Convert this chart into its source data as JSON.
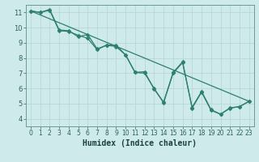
{
  "xlabel": "Humidex (Indice chaleur)",
  "background_color": "#ceeaea",
  "grid_color": "#b8d8d8",
  "line_color": "#2d7f6e",
  "spine_color": "#6a9a9a",
  "tick_color": "#2d6060",
  "label_color": "#1a4040",
  "xlim": [
    -0.5,
    23.5
  ],
  "ylim": [
    3.5,
    11.5
  ],
  "xticks": [
    0,
    1,
    2,
    3,
    4,
    5,
    6,
    7,
    8,
    9,
    10,
    11,
    12,
    13,
    14,
    15,
    16,
    17,
    18,
    19,
    20,
    21,
    22,
    23
  ],
  "yticks": [
    4,
    5,
    6,
    7,
    8,
    9,
    10,
    11
  ],
  "series1_x": [
    0,
    1,
    2,
    3,
    4,
    5,
    6,
    7,
    8,
    9,
    10,
    11,
    12,
    13,
    14,
    15,
    16,
    17,
    18,
    19,
    20,
    21,
    22,
    23
  ],
  "series1_y": [
    11.1,
    11.0,
    11.2,
    9.85,
    9.8,
    9.4,
    9.55,
    8.6,
    8.85,
    8.85,
    8.2,
    7.05,
    7.0,
    6.0,
    5.05,
    7.0,
    7.7,
    4.75,
    5.8,
    4.6,
    4.3,
    4.7,
    4.8,
    5.15
  ],
  "series2_x": [
    0,
    1,
    2,
    3,
    4,
    5,
    6,
    7,
    8,
    9,
    10,
    11,
    12,
    13,
    14,
    15,
    16,
    17,
    18,
    19,
    20,
    21,
    22,
    23
  ],
  "series2_y": [
    11.1,
    11.0,
    11.15,
    9.8,
    9.75,
    9.5,
    9.3,
    8.55,
    8.85,
    8.75,
    8.2,
    7.05,
    7.1,
    5.95,
    5.1,
    7.05,
    7.75,
    4.7,
    5.75,
    4.55,
    4.3,
    4.72,
    4.8,
    5.15
  ],
  "trend_x": [
    0,
    23
  ],
  "trend_y": [
    11.1,
    5.15
  ],
  "marker_size": 2.5,
  "line_width": 0.9,
  "xlabel_fontsize": 7,
  "tick_fontsize": 5.5
}
